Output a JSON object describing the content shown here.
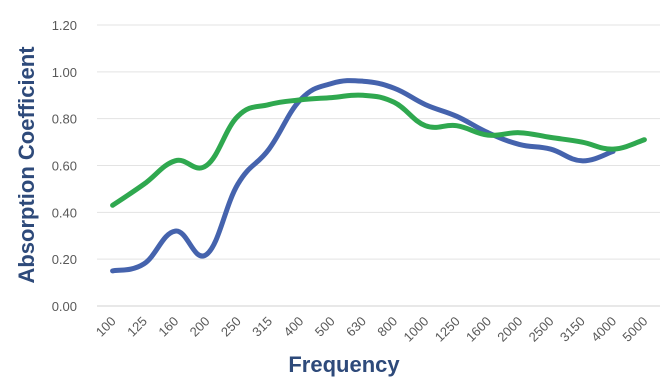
{
  "chart_data": {
    "type": "line",
    "xlabel": "Frequency",
    "ylabel": "Absorption Coefficient",
    "categories": [
      "100",
      "125",
      "160",
      "200",
      "250",
      "315",
      "400",
      "500",
      "630",
      "800",
      "1000",
      "1250",
      "1600",
      "2000",
      "2500",
      "3150",
      "4000",
      "5000"
    ],
    "ylim": [
      0,
      1.2
    ],
    "yticks": [
      "0.00",
      "0.20",
      "0.40",
      "0.60",
      "0.80",
      "1.00",
      "1.20"
    ],
    "grid": true,
    "legend": "none",
    "series": [
      {
        "color": "#4563ad",
        "values": [
          0.15,
          0.18,
          0.32,
          0.22,
          0.52,
          0.67,
          0.88,
          0.95,
          0.96,
          0.93,
          0.86,
          0.81,
          0.74,
          0.69,
          0.67,
          0.62,
          0.66,
          null
        ]
      },
      {
        "color": "#2fa84f",
        "values": [
          0.43,
          0.52,
          0.62,
          0.6,
          0.81,
          0.86,
          0.88,
          0.89,
          0.9,
          0.87,
          0.77,
          0.77,
          0.73,
          0.74,
          0.72,
          0.7,
          0.67,
          0.71
        ]
      }
    ]
  }
}
